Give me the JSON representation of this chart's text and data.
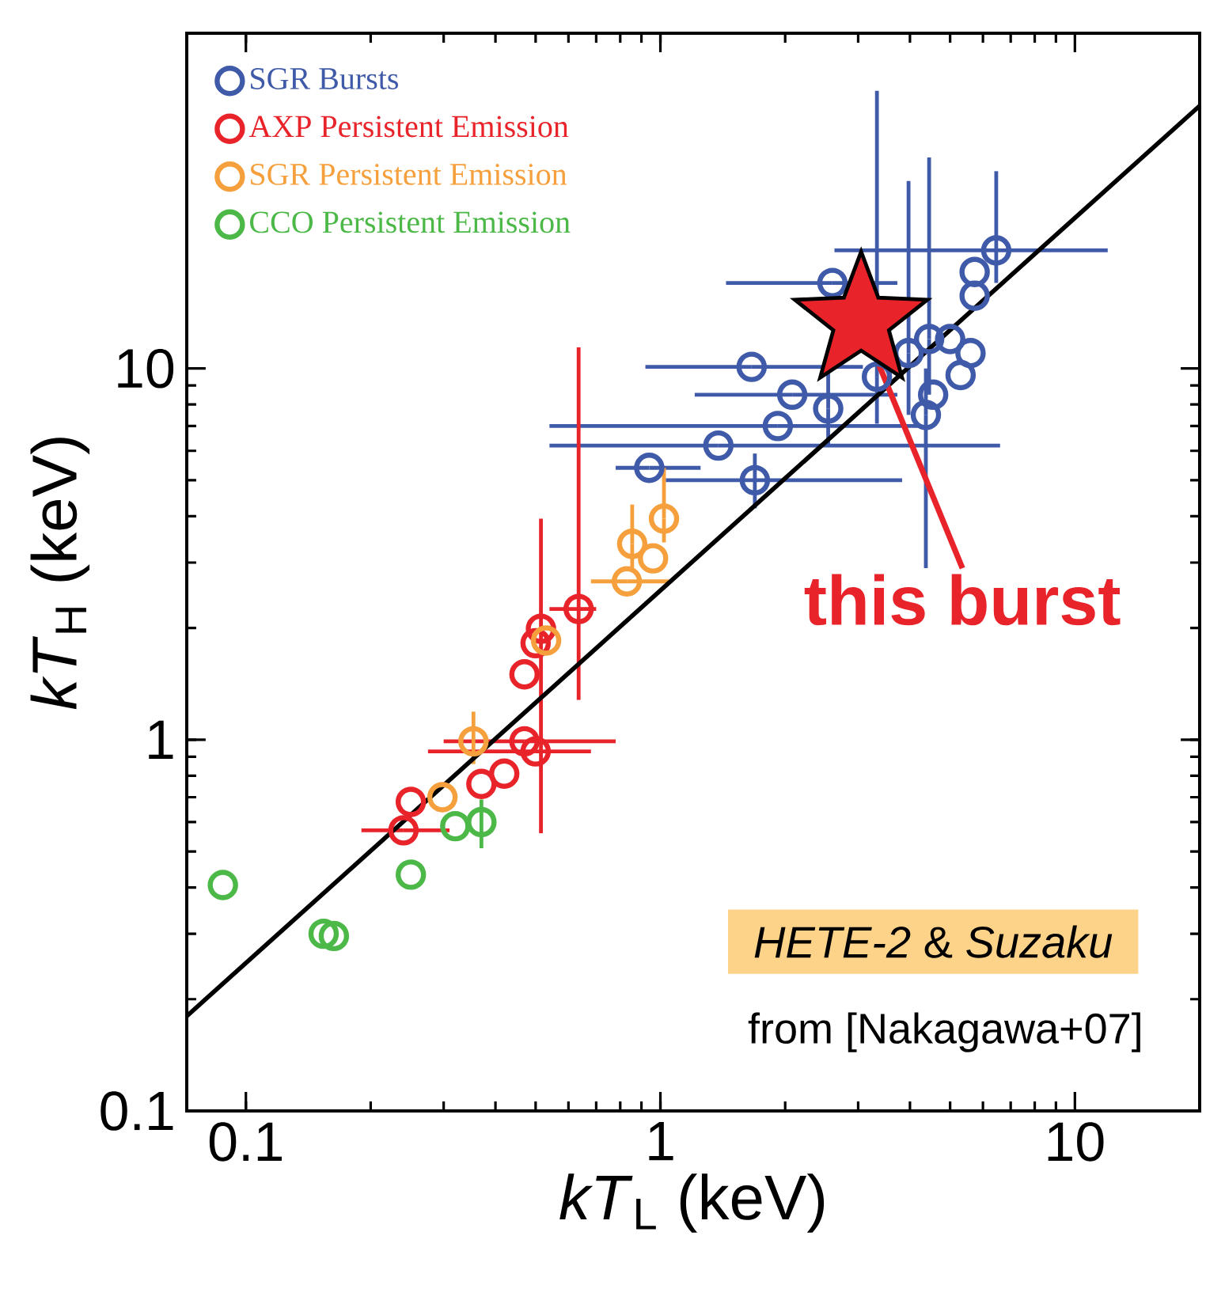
{
  "chart_data": {
    "type": "scatter",
    "xlabel": "*kT*$_{L}$ (keV)",
    "ylabel": "*kT*$_{H}$ (keV)",
    "log": "xy",
    "xlim": [
      0.072,
      20
    ],
    "ylim": [
      0.1,
      80
    ],
    "xticks": [
      0.1,
      1,
      10
    ],
    "yticks": [
      0.1,
      1,
      10
    ],
    "marker": "circle",
    "legend": "top left",
    "grid": false,
    "series": [
      {
        "name": "SGR Bursts",
        "color": "#3f5aa8",
        "x": [
          0.94,
          1.38,
          1.69,
          1.66,
          2.08,
          1.92,
          2.54,
          4.37,
          3.33,
          4.45,
          3.97,
          6.46,
          5.73,
          5.73,
          5.6,
          5.0,
          4.55,
          5.3,
          2.6
        ],
        "values": [
          5.4,
          6.2,
          5.0,
          10.1,
          8.5,
          7.0,
          7.8,
          7.5,
          9.5,
          12,
          11,
          20.8,
          18.2,
          15.7,
          11.0,
          12.0,
          8.5,
          9.6,
          17
        ],
        "xerrors": [
          [
            0.78,
            1.25
          ],
          [
            0.54,
            6.6
          ],
          [
            1.03,
            3.83
          ],
          [
            0.92,
            3.08
          ],
          [
            1.21,
            3.73
          ],
          [
            0.54,
            4.2
          ],
          null,
          null,
          null,
          null,
          null,
          [
            2.63,
            12
          ],
          null,
          null,
          null,
          null,
          null,
          null,
          [
            1.44,
            3.73
          ]
        ],
        "errors": [
          null,
          null,
          [
            4.2,
            5.9
          ],
          null,
          null,
          null,
          [
            6.2,
            10.5
          ],
          [
            2.9,
            10
          ],
          [
            7.1,
            56
          ],
          [
            8.5,
            37
          ],
          [
            7.5,
            32
          ],
          [
            17,
            34
          ],
          null,
          null,
          null,
          null,
          null,
          null,
          null
        ]
      },
      {
        "name": "AXP Persistent Emission",
        "color": "#e8232a",
        "x": [
          0.635,
          0.515,
          0.5,
          0.47,
          0.47,
          0.5,
          0.42,
          0.37,
          0.25,
          0.24
        ],
        "values": [
          2.25,
          1.99,
          1.82,
          1.5,
          0.99,
          0.93,
          0.81,
          0.76,
          0.68,
          0.57
        ],
        "xerrors": [
          [
            0.54,
            0.7
          ],
          null,
          null,
          null,
          [
            0.3,
            0.78
          ],
          [
            0.275,
            0.68
          ],
          null,
          null,
          null,
          [
            0.19,
            0.31
          ]
        ],
        "errors": [
          [
            1.28,
            11.4
          ],
          [
            0.56,
            3.94
          ],
          null,
          null,
          null,
          null,
          null,
          null,
          null,
          null
        ]
      },
      {
        "name": "SGR Persistent Emission",
        "color": "#f5a03c",
        "x": [
          0.83,
          0.855,
          0.96,
          1.02,
          0.96,
          0.354,
          0.298,
          0.53
        ],
        "values": [
          2.67,
          3.37,
          null,
          3.94,
          3.08,
          0.99,
          0.7,
          1.85
        ],
        "xerrors": [
          [
            0.68,
            1.05
          ],
          null,
          null,
          null,
          null,
          null,
          null,
          null
        ],
        "errors": [
          null,
          [
            2.9,
            4.3
          ],
          null,
          [
            3.4,
            5.4
          ],
          null,
          [
            0.86,
            1.19
          ],
          null,
          null
        ]
      },
      {
        "name": "CCO Persistent Emission",
        "color": "#4cb848",
        "x": [
          0.088,
          0.163,
          0.154,
          0.25,
          0.32,
          0.37
        ],
        "values": [
          0.406,
          0.296,
          0.3,
          0.433,
          0.585,
          0.6
        ],
        "errors": [
          null,
          null,
          null,
          null,
          null,
          [
            0.51,
            0.69
          ]
        ]
      },
      {
        "type": "line",
        "color": "#000000",
        "marker": "none",
        "x": [
          0.072,
          20
        ],
        "values": [
          0.18,
          51
        ]
      },
      {
        "color": "#e8232a",
        "marker": "star",
        "x": [
          3.05
        ],
        "values": [
          13.4
        ]
      }
    ],
    "annotations": [
      {
        "text": "**this burst**",
        "x": 3.05,
        "y": 13.4
      },
      "*HETE-2* & *Suzaku*",
      "from [Nakagawa+07]"
    ]
  }
}
